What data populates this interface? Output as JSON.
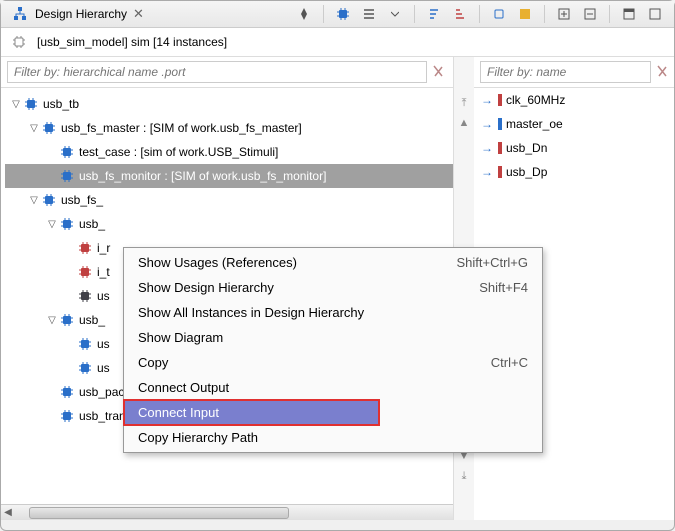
{
  "titlebar": {
    "title": "Design Hierarchy",
    "icon": "hierarchy-icon"
  },
  "breadcrumb": "[usb_sim_model] sim [14 instances]",
  "left": {
    "filter_placeholder": "Filter by: hierarchical name .port",
    "tree": [
      {
        "indent": 0,
        "expanded": true,
        "icon": "chip-blue",
        "label": "usb_tb"
      },
      {
        "indent": 1,
        "expanded": true,
        "icon": "chip-blue",
        "label": "usb_fs_master : [SIM of work.usb_fs_master]"
      },
      {
        "indent": 2,
        "expanded": null,
        "icon": "chip-blue",
        "label": "test_case : [sim of work.USB_Stimuli]"
      },
      {
        "indent": 2,
        "expanded": null,
        "icon": "chip-blue",
        "label": "usb_fs_monitor : [SIM of work.usb_fs_monitor]",
        "selected": true
      },
      {
        "indent": 1,
        "expanded": true,
        "icon": "chip-blue",
        "label": "usb_fs_"
      },
      {
        "indent": 2,
        "expanded": true,
        "icon": "chip-blue",
        "label": "usb_"
      },
      {
        "indent": 3,
        "expanded": null,
        "icon": "chip-red",
        "label": "i_r"
      },
      {
        "indent": 3,
        "expanded": null,
        "icon": "chip-red",
        "label": "i_t"
      },
      {
        "indent": 3,
        "expanded": null,
        "icon": "chip-dark",
        "label": "us"
      },
      {
        "indent": 2,
        "expanded": true,
        "icon": "chip-blue",
        "label": "usb_"
      },
      {
        "indent": 3,
        "expanded": null,
        "icon": "chip-blue",
        "label": "us"
      },
      {
        "indent": 3,
        "expanded": null,
        "icon": "chip-blue",
        "label": "us"
      },
      {
        "indent": 2,
        "expanded": null,
        "icon": "chip-blue",
        "label": "usb_packet_inst : [usb_packet_arch of work.u"
      },
      {
        "indent": 2,
        "expanded": null,
        "icon": "chip-blue",
        "label": "usb_transact_inst : [usb_transact_arch of wor"
      }
    ]
  },
  "right": {
    "filter_placeholder": "Filter by: name",
    "signals": [
      {
        "dir": "in",
        "bar": "red",
        "label": "clk_60MHz"
      },
      {
        "dir": "out",
        "bar": "blue",
        "label": "master_oe"
      },
      {
        "dir": "out",
        "bar": "red",
        "label": "usb_Dn"
      },
      {
        "dir": "out",
        "bar": "red",
        "label": "usb_Dp"
      }
    ]
  },
  "ctx": {
    "items": [
      {
        "label": "Show Usages (References)",
        "shortcut": "Shift+Ctrl+G"
      },
      {
        "label": "Show Design Hierarchy",
        "shortcut": "Shift+F4"
      },
      {
        "label": "Show All Instances in Design Hierarchy",
        "shortcut": ""
      },
      {
        "label": "Show Diagram",
        "shortcut": ""
      },
      {
        "label": "Copy",
        "shortcut": "Ctrl+C"
      },
      {
        "label": "Connect Output",
        "shortcut": ""
      },
      {
        "label": "Connect Input",
        "shortcut": "",
        "hovered": true
      },
      {
        "label": "Copy Hierarchy Path",
        "shortcut": ""
      }
    ]
  },
  "colors": {
    "chip_blue": "#2a6fc9",
    "chip_red": "#c04040",
    "chip_dark": "#404048",
    "hover_bg": "#7a7fce",
    "hover_outline": "#e03030"
  }
}
